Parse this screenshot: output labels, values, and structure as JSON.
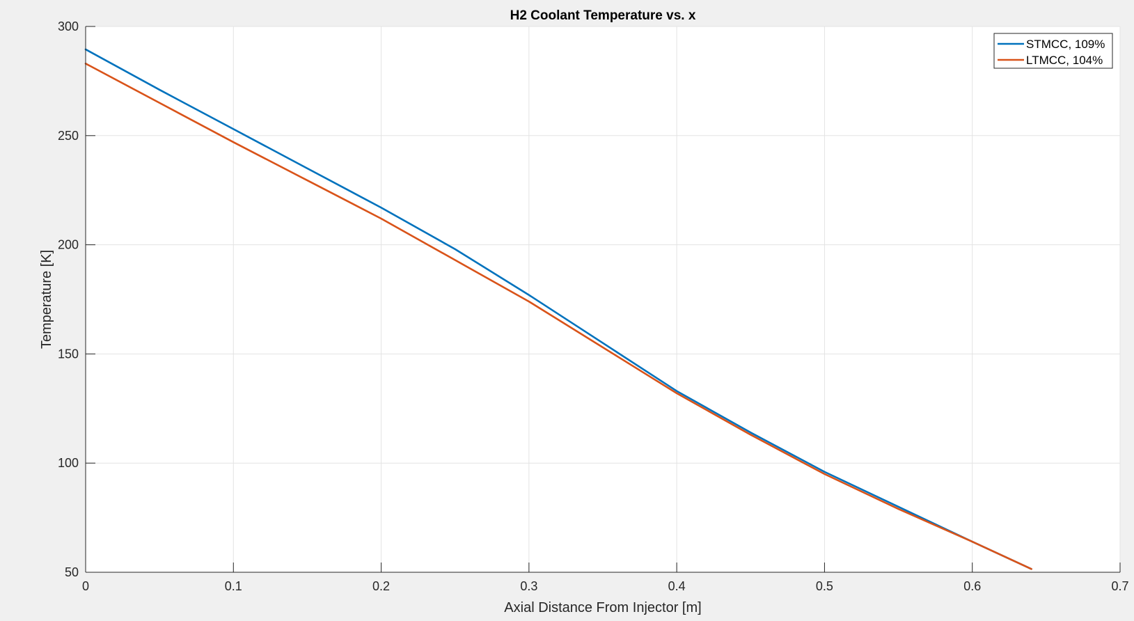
{
  "colors": {
    "figure_background": "#f0f0f0",
    "axes_background": "#ffffff",
    "grid": "#e3e3e3",
    "axis": "#262626",
    "text": "#262626"
  },
  "chart_data": {
    "type": "line",
    "title": "H2 Coolant Temperature vs. x",
    "xlabel": "Axial Distance From Injector [m]",
    "ylabel": "Temperature [K]",
    "xlim": [
      0,
      0.7
    ],
    "ylim": [
      50,
      300
    ],
    "xticks": [
      0,
      0.1,
      0.2,
      0.3,
      0.4,
      0.5,
      0.6,
      0.7
    ],
    "yticks": [
      50,
      100,
      150,
      200,
      250,
      300
    ],
    "xtick_labels": [
      "0",
      "0.1",
      "0.2",
      "0.3",
      "0.4",
      "0.5",
      "0.6",
      "0.7"
    ],
    "ytick_labels": [
      "50",
      "100",
      "150",
      "200",
      "250",
      "300"
    ],
    "grid": true,
    "legend_position": "top-right",
    "series": [
      {
        "name": "STMCC, 109%",
        "color": "#0072BD",
        "x": [
          0,
          0.05,
          0.1,
          0.15,
          0.2,
          0.25,
          0.3,
          0.35,
          0.4,
          0.45,
          0.5,
          0.55,
          0.6,
          0.64
        ],
        "y": [
          289.5,
          271,
          253,
          235,
          217,
          198,
          177,
          155,
          133,
          114,
          96,
          80,
          64,
          51.5
        ]
      },
      {
        "name": "LTMCC, 104%",
        "color": "#D95319",
        "x": [
          0,
          0.05,
          0.1,
          0.15,
          0.2,
          0.25,
          0.3,
          0.35,
          0.4,
          0.45,
          0.5,
          0.55,
          0.6,
          0.64
        ],
        "y": [
          283,
          265,
          247,
          229.5,
          212,
          193,
          174,
          153,
          132,
          113,
          95,
          79,
          64,
          51.5
        ]
      }
    ]
  }
}
